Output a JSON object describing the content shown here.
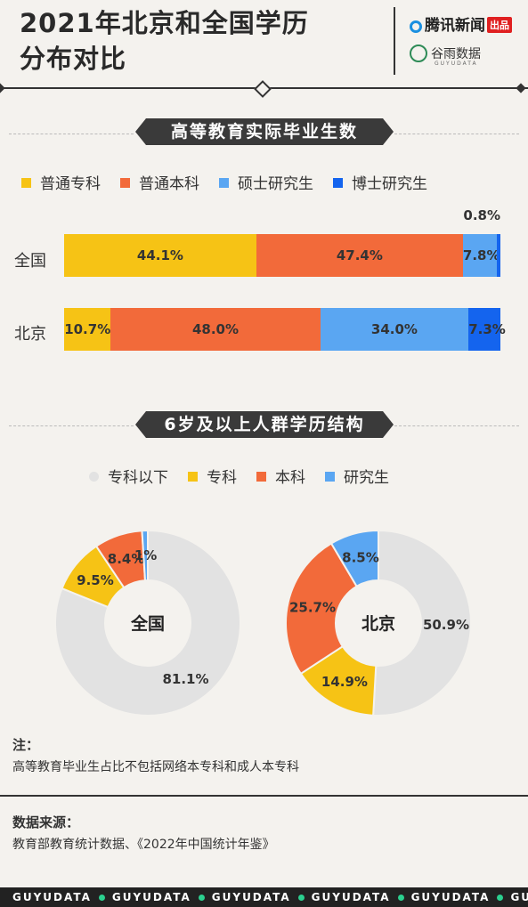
{
  "header": {
    "title_line1": "2021年北京和全国学历",
    "title_line2": "分布对比",
    "brand1": "腾讯新闻",
    "brand1_badge": "出品",
    "brand2": "谷雨数据",
    "brand2_sub": "GUYUDATA"
  },
  "colors": {
    "zhuanke": "#f6c315",
    "benke": "#f26a3a",
    "shuoshi": "#5aa6f2",
    "boshi": "#1464ee",
    "below": "#e2e2e2",
    "yanjiusheng": "#5aa6f2"
  },
  "chart_data": [
    {
      "type": "bar",
      "orientation": "horizontal-stacked-percent",
      "title": "高等教育实际毕业生数",
      "categories": [
        "全国",
        "北京"
      ],
      "series": [
        {
          "name": "普通专科",
          "values": [
            44.1,
            10.7
          ],
          "labels": [
            "44.1%",
            "10.7%"
          ]
        },
        {
          "name": "普通本科",
          "values": [
            47.4,
            48.0
          ],
          "labels": [
            "47.4%",
            "48.0%"
          ]
        },
        {
          "name": "硕士研究生",
          "values": [
            7.8,
            34.0
          ],
          "labels": [
            "7.8%",
            "34.0%"
          ]
        },
        {
          "name": "博士研究生",
          "values": [
            0.8,
            7.3
          ],
          "labels": [
            "0.8%",
            "7.3%"
          ]
        }
      ]
    },
    {
      "type": "pie",
      "subtype": "donut",
      "title": "6岁及以上人群学历结构",
      "legend": [
        "专科以下",
        "专科",
        "本科",
        "研究生"
      ],
      "charts": [
        {
          "center_label": "全国",
          "values": [
            81.1,
            9.5,
            8.4,
            1.0
          ],
          "labels": [
            "81.1%",
            "9.5%",
            "8.4%",
            "1%"
          ]
        },
        {
          "center_label": "北京",
          "values": [
            50.9,
            14.9,
            25.7,
            8.5
          ],
          "labels": [
            "50.9%",
            "14.9%",
            "25.7%",
            "8.5%"
          ]
        }
      ]
    }
  ],
  "notes": {
    "note_heading": "注：",
    "note_text": "高等教育毕业生占比不包括网络本专科和成人本专科",
    "source_heading": "数据来源：",
    "source_text": "教育部教育统计数据、《2022年中国统计年鉴》"
  },
  "footer": {
    "items": [
      "GUYUDATA",
      "GUYUDATA",
      "GUYUDATA",
      "GUYUDATA",
      "GUYUDATA",
      "GUYUDATA"
    ]
  }
}
